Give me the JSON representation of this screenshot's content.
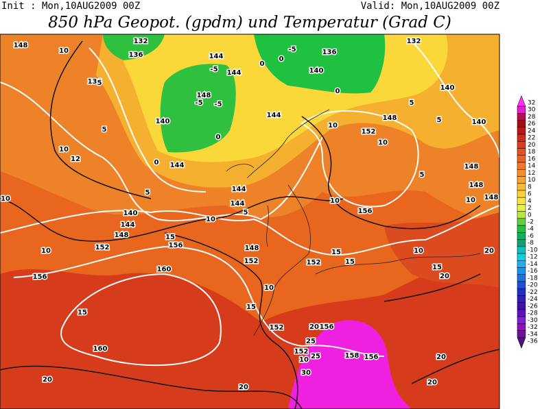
{
  "header": {
    "init": "Init : Mon,10AUG2009 00Z",
    "valid": "Valid: Mon,10AUG2009 00Z",
    "title": "850 hPa Geopot. (gpdm) und Temperatur (Grad C)"
  },
  "colorbar": {
    "values": [
      32,
      30,
      28,
      26,
      24,
      22,
      20,
      18,
      16,
      14,
      12,
      10,
      8,
      6,
      4,
      2,
      0,
      -2,
      -4,
      -6,
      -8,
      -10,
      -12,
      -14,
      -16,
      -18,
      -20,
      -22,
      -24,
      -26,
      -28,
      -30,
      -32,
      -34,
      -36
    ],
    "colors": [
      "#ff30ff",
      "#e020d0",
      "#b01050",
      "#a01010",
      "#b81818",
      "#cc2a1a",
      "#dd3c1e",
      "#e54f22",
      "#ea6426",
      "#ee7a2a",
      "#f2902e",
      "#f5a632",
      "#f8bc36",
      "#fad23a",
      "#fce43e",
      "#e8f040",
      "#b8e840",
      "#60d040",
      "#20c040",
      "#10b060",
      "#10a070",
      "#10c0c0",
      "#10d0e0",
      "#20b0f0",
      "#2090f0",
      "#2070e0",
      "#2050d0",
      "#2030c0",
      "#3020b0",
      "#4010a0",
      "#6010c0",
      "#8020d0",
      "#9010c0",
      "#7010a0",
      "#501080"
    ]
  },
  "map": {
    "contour_labels": [
      148,
      10,
      132,
      136,
      144,
      136,
      140,
      148,
      144,
      132,
      136,
      140,
      140,
      144,
      10,
      148,
      152,
      10,
      144,
      10,
      12,
      10,
      144,
      144,
      10,
      140,
      144,
      148,
      152,
      15,
      156,
      10,
      148,
      152,
      152,
      15,
      15,
      156,
      10,
      160,
      156,
      15,
      10,
      15,
      152,
      20,
      156,
      25,
      152,
      25,
      10,
      30,
      158,
      156,
      160,
      20,
      20,
      20,
      20,
      20,
      15,
      10,
      20,
      140,
      148,
      148,
      148,
      10,
      5,
      5,
      5,
      0,
      -5,
      0,
      0,
      -5,
      -5,
      -5,
      0,
      0,
      5,
      5,
      5,
      5
    ]
  }
}
